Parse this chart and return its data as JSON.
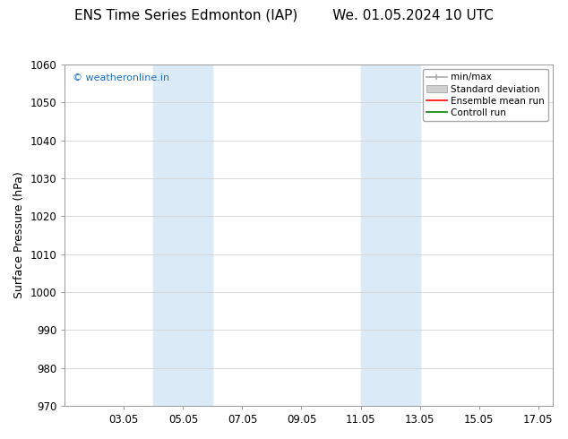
{
  "title_left": "ENS Time Series Edmonton (IAP)",
  "title_right": "We. 01.05.2024 10 UTC",
  "ylabel": "Surface Pressure (hPa)",
  "ylim": [
    970,
    1060
  ],
  "yticks": [
    970,
    980,
    990,
    1000,
    1010,
    1020,
    1030,
    1040,
    1050,
    1060
  ],
  "xlim": [
    1.0,
    17.5
  ],
  "xtick_labels": [
    "03.05",
    "05.05",
    "07.05",
    "09.05",
    "11.05",
    "13.05",
    "15.05",
    "17.05"
  ],
  "xtick_positions_day": [
    3,
    5,
    7,
    9,
    11,
    13,
    15,
    17
  ],
  "shaded_bands": [
    {
      "xmin_day": 4.0,
      "xmax_day": 6.0
    },
    {
      "xmin_day": 11.0,
      "xmax_day": 13.0
    }
  ],
  "shade_color": "#daeaf7",
  "watermark": "© weatheronline.in",
  "watermark_color": "#1a6fc4",
  "legend_labels": [
    "min/max",
    "Standard deviation",
    "Ensemble mean run",
    "Controll run"
  ],
  "legend_colors": [
    "#aaaaaa",
    "#cccccc",
    "#ff0000",
    "#008000"
  ],
  "bg_color": "#ffffff",
  "grid_color": "#cccccc",
  "title_fontsize": 11,
  "tick_fontsize": 8.5,
  "ylabel_fontsize": 9,
  "legend_fontsize": 7.5
}
